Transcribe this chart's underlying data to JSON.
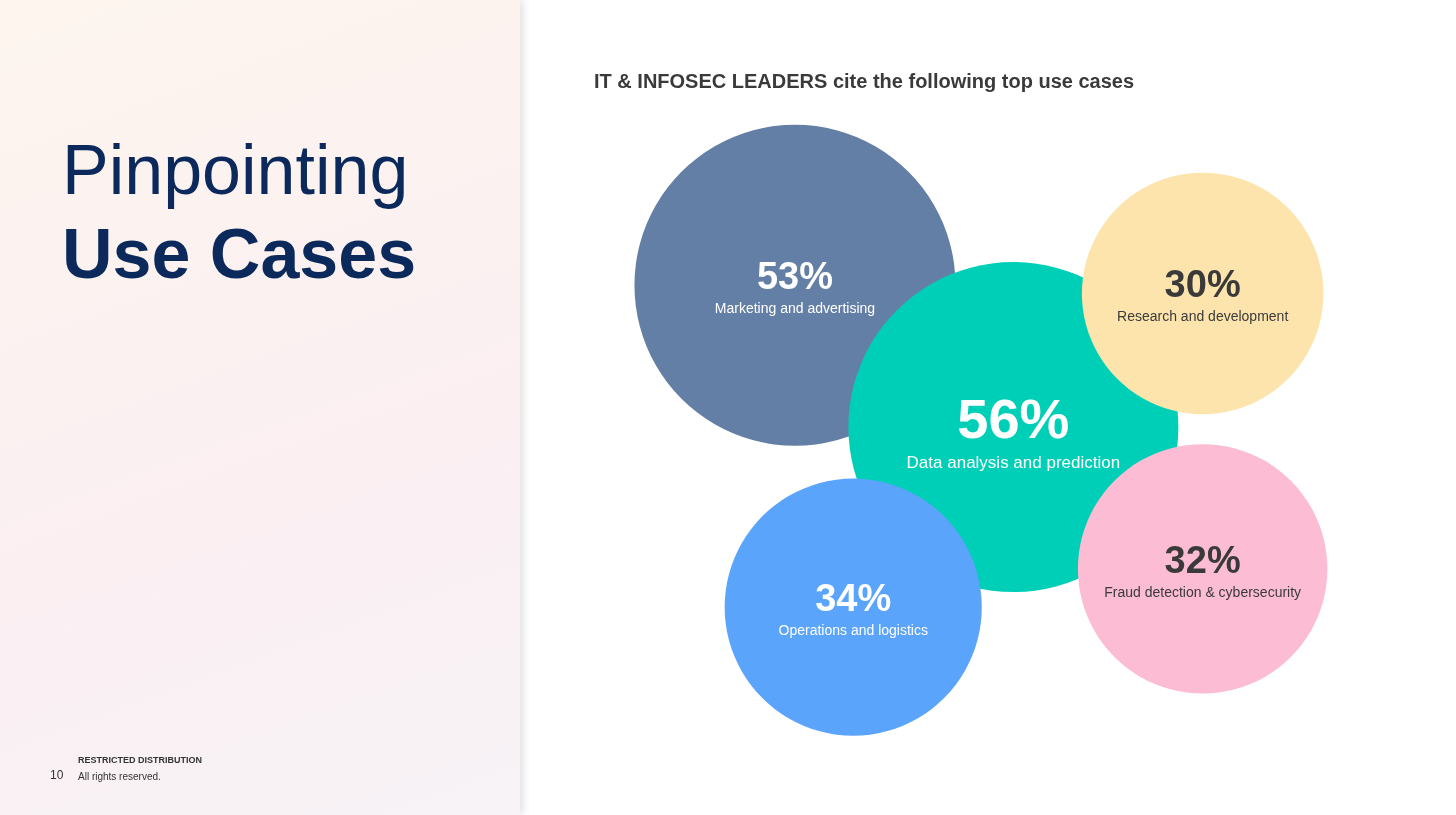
{
  "chart_data": {
    "type": "other",
    "title": "Pinpointing Use Cases",
    "subtitle": "IT & INFOSEC LEADERS cite the following top use cases",
    "categories": [
      "Marketing and advertising",
      "Data analysis and prediction",
      "Research and development",
      "Operations and logistics",
      "Fraud detection & cybersecurity"
    ],
    "values": [
      53,
      56,
      30,
      34,
      32
    ],
    "value_labels": [
      "53%",
      "56%",
      "30%",
      "34%",
      "32%"
    ],
    "colors": [
      "#647fa5",
      "#00cfb8",
      "#fde4ad",
      "#5ba4fb",
      "#fcbcd3"
    ],
    "annotations": [
      "RESTRICTED DISTRIBUTION",
      "10",
      "All rights reserved."
    ]
  }
}
